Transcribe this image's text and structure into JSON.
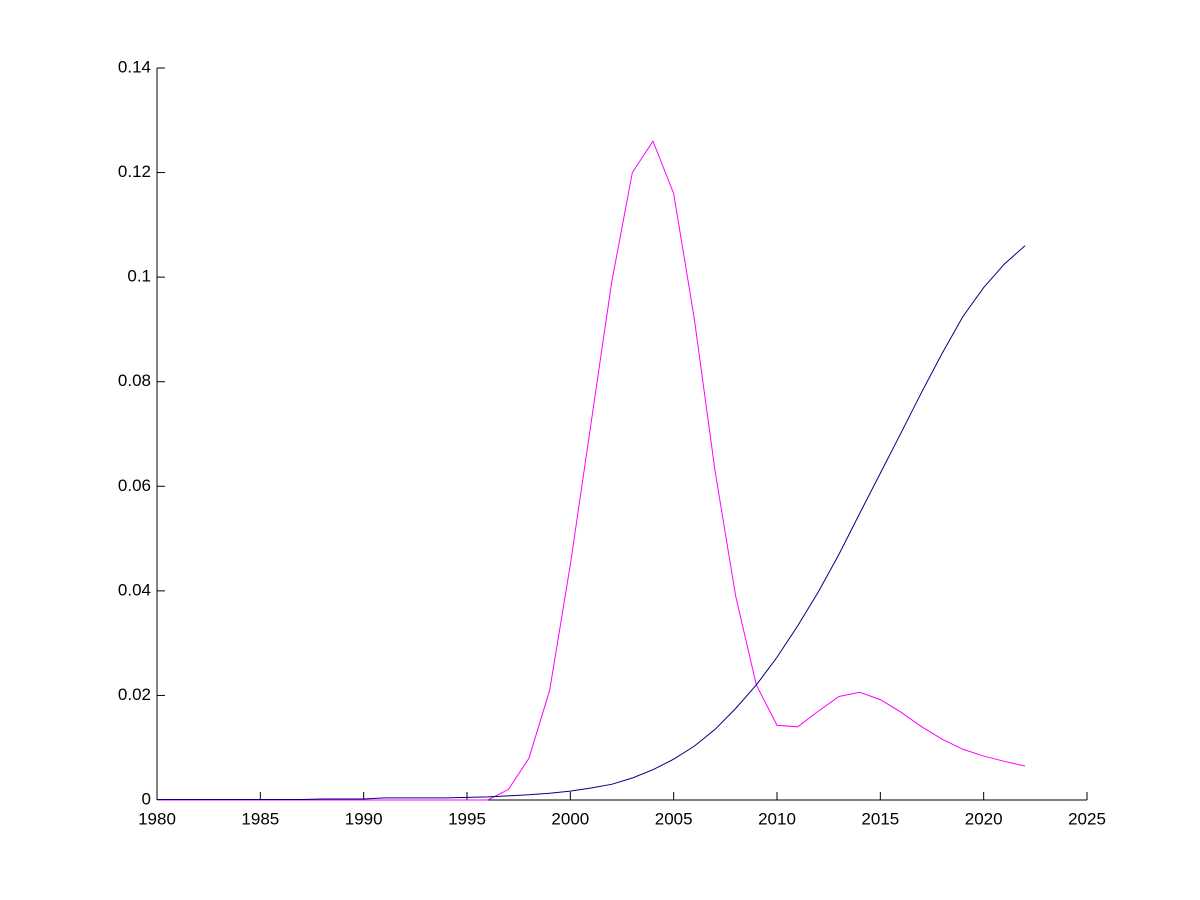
{
  "chart_data": {
    "type": "line",
    "x": [
      1980,
      1981,
      1982,
      1983,
      1984,
      1985,
      1986,
      1987,
      1988,
      1989,
      1990,
      1991,
      1992,
      1993,
      1994,
      1995,
      1996,
      1997,
      1998,
      1999,
      2000,
      2001,
      2002,
      2003,
      2004,
      2005,
      2006,
      2007,
      2008,
      2009,
      2010,
      2011,
      2012,
      2013,
      2014,
      2015,
      2016,
      2017,
      2018,
      2019,
      2020,
      2021,
      2022
    ],
    "series": [
      {
        "color": "#ff00ff",
        "values": [
          0,
          0,
          0,
          0,
          0,
          0,
          0,
          0,
          0,
          0,
          0,
          0,
          0,
          0,
          0,
          0,
          0,
          0.002,
          0.008,
          0.021,
          0.045,
          0.072,
          0.099,
          0.12,
          0.126,
          0.116,
          0.092,
          0.063,
          0.039,
          0.022,
          0.0143,
          0.014,
          0.017,
          0.0198,
          0.0206,
          0.0192,
          0.0168,
          0.014,
          0.0116,
          0.0097,
          0.0084,
          0.0074,
          0.0065
        ]
      },
      {
        "color": "#000080",
        "values": [
          0.0001,
          0.0001,
          0.0001,
          0.0001,
          0.0001,
          0.0001,
          0.0001,
          0.0001,
          0.0002,
          0.0002,
          0.0002,
          0.0004,
          0.0004,
          0.0004,
          0.0004,
          0.0005,
          0.0006,
          0.0008,
          0.001,
          0.0013,
          0.0017,
          0.0023,
          0.003,
          0.0042,
          0.0058,
          0.0078,
          0.0103,
          0.0135,
          0.0175,
          0.022,
          0.0273,
          0.0333,
          0.0398,
          0.047,
          0.0548,
          0.0625,
          0.0702,
          0.078,
          0.0855,
          0.0925,
          0.098,
          0.1025,
          0.106
        ]
      }
    ],
    "xlim": [
      1980,
      2025
    ],
    "xticks": [
      1980,
      1985,
      1990,
      1995,
      2000,
      2005,
      2010,
      2015,
      2020,
      2025
    ],
    "ylim": [
      0,
      0.14
    ],
    "yticks": [
      0,
      0.02,
      0.04,
      0.06,
      0.08,
      0.1,
      0.12,
      0.14
    ]
  }
}
